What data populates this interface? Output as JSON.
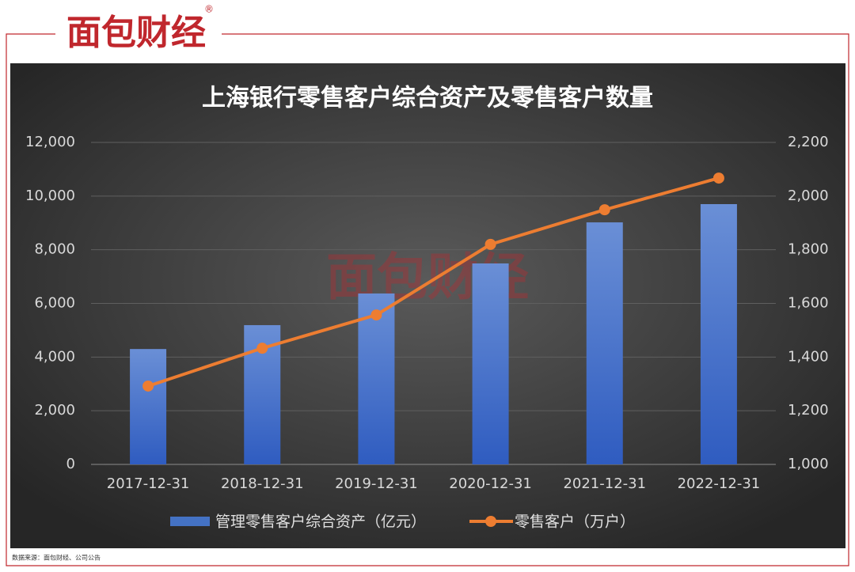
{
  "header": {
    "logo": "面包财经",
    "mark": "®"
  },
  "footer": {
    "source": "数据来源：面包财经、公司公告"
  },
  "chart_data": {
    "type": "bar-line",
    "title": "上海银行零售客户综合资产及零售客户数量",
    "categories": [
      "2017-12-31",
      "2018-12-31",
      "2019-12-31",
      "2020-12-31",
      "2021-12-31",
      "2022-12-31"
    ],
    "series": [
      {
        "name": "管理零售客户综合资产（亿元）",
        "type": "bar",
        "color": "#4472c4",
        "values": [
          4300,
          5190,
          6370,
          7490,
          9020,
          9700
        ]
      },
      {
        "name": "零售客户（万户）",
        "type": "line",
        "axis": "y2",
        "color": "#ed7d31",
        "values": [
          1292,
          1433,
          1557,
          1820,
          1949,
          2067
        ]
      }
    ],
    "ylim": [
      0,
      12000
    ],
    "yticks": [
      0,
      {
        "value": 2000,
        "label": "2,000"
      },
      {
        "value": 4000,
        "label": "4,000"
      },
      {
        "value": 6000,
        "label": "6,000"
      },
      {
        "value": 8000,
        "label": "8,000"
      },
      {
        "value": 10000,
        "label": "10,000"
      },
      {
        "value": 12000,
        "label": "12,000"
      }
    ],
    "y2lim": [
      1000,
      2200
    ],
    "y2ticks": [
      {
        "value": 1000,
        "label": "1,000"
      },
      {
        "value": 1200,
        "label": "1,200"
      },
      {
        "value": 1400,
        "label": "1,400"
      },
      {
        "value": 1600,
        "label": "1,600"
      },
      {
        "value": 1800,
        "label": "1,800"
      },
      {
        "value": 2000,
        "label": "2,000"
      },
      {
        "value": 2200,
        "label": "2,200"
      }
    ],
    "grid": true,
    "legend": "bottom"
  }
}
